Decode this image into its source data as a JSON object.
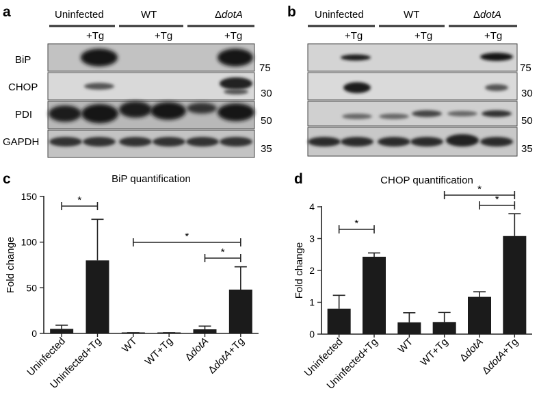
{
  "panels": {
    "a": "a",
    "b": "b",
    "c": "c",
    "d": "d"
  },
  "blot": {
    "groups": [
      {
        "name": "Uninfected"
      },
      {
        "name": "WT"
      },
      {
        "prefix": "Δ",
        "name": "dotA"
      }
    ],
    "treatment_label": "+Tg",
    "rows": [
      "BiP",
      "CHOP",
      "PDI",
      "GAPDH"
    ],
    "markers": [
      "75",
      "30",
      "50",
      "35"
    ]
  },
  "chart_data": [
    {
      "type": "bar",
      "title": "BiP quantification",
      "ylabel": "Fold change",
      "xlabel": "",
      "categories": [
        "Uninfected",
        "Uninfected+Tg",
        "WT",
        "WT+Tg",
        "ΔdotA",
        "ΔdotA+Tg"
      ],
      "values": [
        5,
        80,
        0.5,
        0.5,
        4.5,
        48
      ],
      "errors": [
        4,
        45,
        0.3,
        0.3,
        3.5,
        25
      ],
      "ylim": [
        0,
        150
      ],
      "yticks": [
        0,
        50,
        100,
        150
      ],
      "significance": [
        {
          "from": 0,
          "to": 1,
          "label": "*"
        },
        {
          "from": 2,
          "to": 5,
          "label": "*"
        },
        {
          "from": 4,
          "to": 5,
          "label": "*"
        }
      ]
    },
    {
      "type": "bar",
      "title": "CHOP quantification",
      "ylabel": "Fold change",
      "xlabel": "",
      "categories": [
        "Uninfected",
        "Uninfected+Tg",
        "WT",
        "WT+Tg",
        "ΔdotA",
        "ΔdotA+Tg"
      ],
      "values": [
        0.8,
        2.43,
        0.37,
        0.38,
        1.17,
        3.08
      ],
      "errors": [
        0.42,
        0.12,
        0.3,
        0.3,
        0.16,
        0.7
      ],
      "ylim": [
        0,
        4
      ],
      "yticks": [
        0,
        1,
        2,
        3,
        4
      ],
      "significance": [
        {
          "from": 0,
          "to": 1,
          "label": "*"
        },
        {
          "from": 3,
          "to": 5,
          "label": "*"
        },
        {
          "from": 4,
          "to": 5,
          "label": "*"
        }
      ]
    }
  ],
  "colors": {
    "bar": "#1b1b1b",
    "blot_background": "#c9c9c9",
    "band": "#161616"
  }
}
